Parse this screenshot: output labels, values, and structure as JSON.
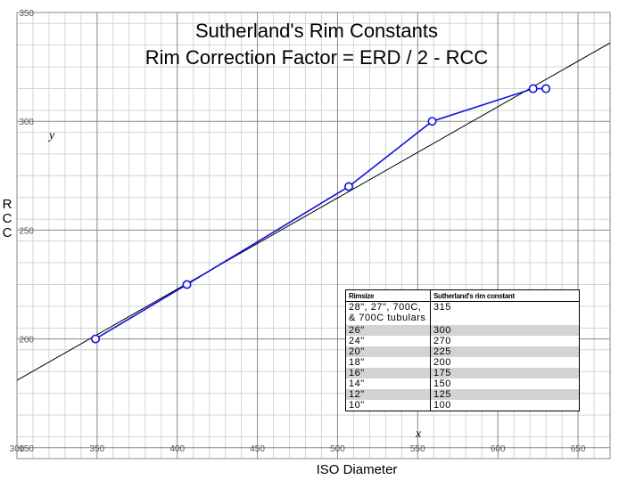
{
  "title_line1": "Sutherland's Rim Constants",
  "title_line2": "Rim Correction Factor = ERD / 2 - RCC",
  "xlabel": "ISO Diameter",
  "ylabel": "RCC",
  "axis_vars": {
    "x": "x",
    "y": "y"
  },
  "colors": {
    "series": "#1010dd",
    "fit_line": "#000000",
    "grid_major": "#8a8a8a",
    "grid_minor": "#d4d4d4",
    "table_shade": "#d3d3d3"
  },
  "chart_data": {
    "type": "line",
    "xlim": [
      300,
      670
    ],
    "ylim": [
      145,
      350
    ],
    "x_ticks": [
      300,
      350,
      400,
      450,
      500,
      550,
      600,
      650
    ],
    "x_tick_labels": [
      "300",
      "350",
      "400",
      "450",
      "500",
      "550",
      "600",
      "650"
    ],
    "y_ticks": [
      150,
      200,
      250,
      300,
      350
    ],
    "y_tick_labels": [
      "150",
      "200",
      "250",
      "300",
      "350"
    ],
    "grid": true,
    "minor_grid_step": 10,
    "series": [
      {
        "x": [
          349,
          406,
          507,
          559,
          622,
          630
        ],
        "y": [
          200,
          225,
          270,
          300,
          315,
          315
        ]
      }
    ],
    "trend_line": {
      "x": [
        300,
        670
      ],
      "y": [
        181,
        336
      ]
    },
    "table": {
      "headers": [
        "Rimsize",
        "Sutherland's rim constant"
      ],
      "rows": [
        {
          "size": "28\", 27\", 700C, & 700C tubulars",
          "constant": "315"
        },
        {
          "size": "26\"",
          "constant": "300"
        },
        {
          "size": "24\"",
          "constant": "270"
        },
        {
          "size": "20\"",
          "constant": "225"
        },
        {
          "size": "18\"",
          "constant": "200"
        },
        {
          "size": "16\"",
          "constant": "175"
        },
        {
          "size": "14\"",
          "constant": "150"
        },
        {
          "size": "12\"",
          "constant": "125"
        },
        {
          "size": "10\"",
          "constant": "100"
        }
      ]
    }
  }
}
